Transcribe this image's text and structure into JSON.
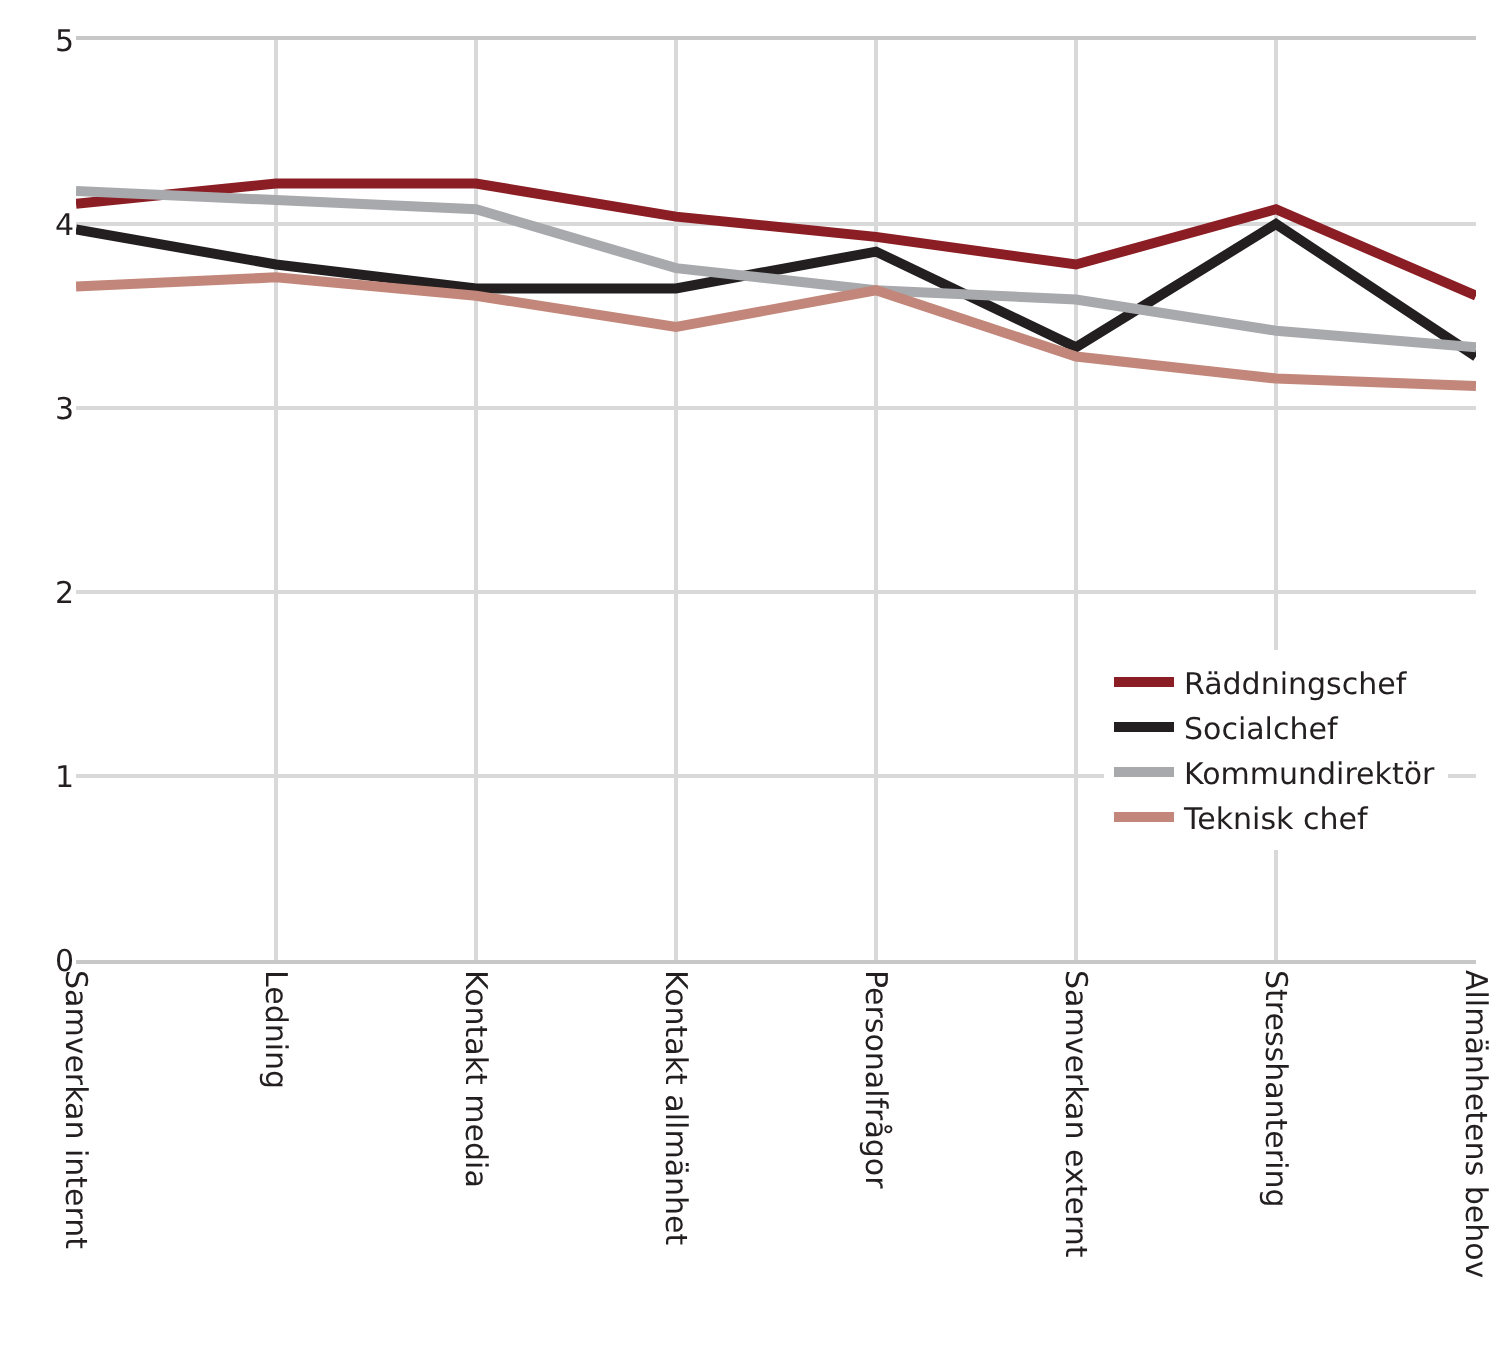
{
  "chart_data": {
    "type": "line",
    "categories": [
      "Samverkan internt",
      "Ledning",
      "Kontakt media",
      "Kontakt allmänhet",
      "Personalfrågor",
      "Samverkan externt",
      "Stresshantering",
      "Allmänhetens behov"
    ],
    "series": [
      {
        "name": "Räddningschef",
        "color": "#8b1e24",
        "values": [
          4.11,
          4.22,
          4.22,
          4.04,
          3.93,
          3.78,
          4.08,
          3.61
        ]
      },
      {
        "name": "Socialchef",
        "color": "#231f20",
        "values": [
          3.97,
          3.78,
          3.65,
          3.65,
          3.85,
          3.33,
          4.0,
          3.28
        ]
      },
      {
        "name": "Kommundirektör",
        "color": "#a7a9ac",
        "values": [
          4.18,
          4.13,
          4.08,
          3.76,
          3.64,
          3.59,
          3.42,
          3.33
        ]
      },
      {
        "name": "Teknisk chef",
        "color": "#c2877a",
        "values": [
          3.66,
          3.71,
          3.61,
          3.44,
          3.64,
          3.28,
          3.16,
          3.12
        ]
      }
    ],
    "ylim": [
      0,
      5
    ],
    "yticks": [
      0,
      1,
      2,
      3,
      4,
      5
    ],
    "grid": true,
    "legend": "bottom right",
    "marker": "none",
    "line_style": "solid"
  }
}
